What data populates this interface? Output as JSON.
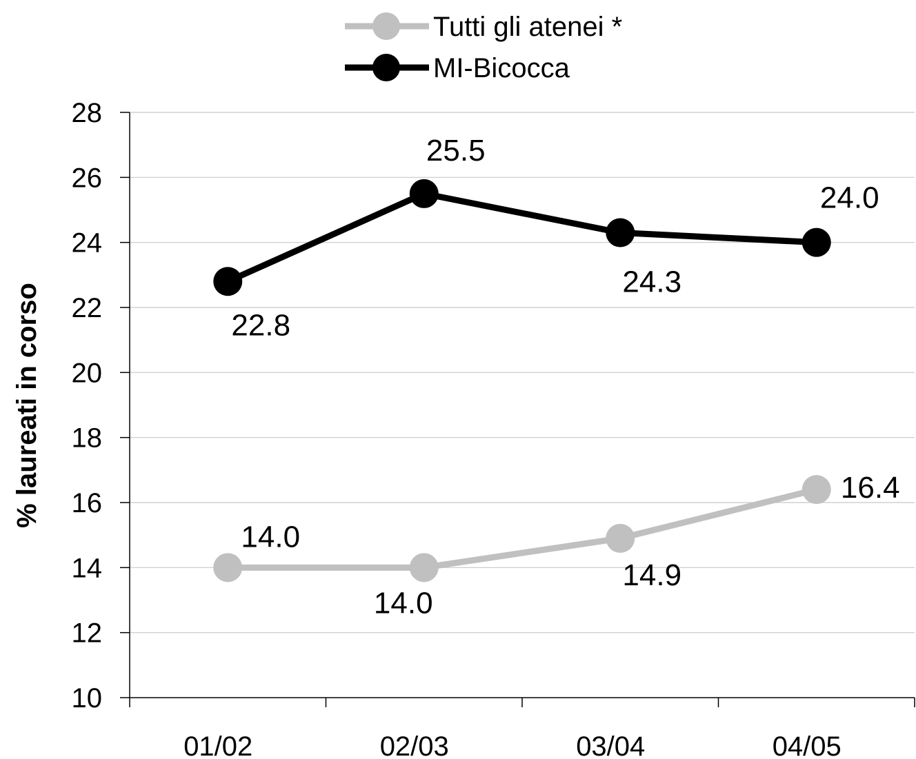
{
  "chart_data": {
    "type": "line",
    "title": "",
    "xlabel": "",
    "ylabel": "% laureati in corso",
    "categories": [
      "01/02",
      "02/03",
      "03/04",
      "04/05"
    ],
    "ylim": [
      10,
      28
    ],
    "yticks": [
      10,
      12,
      14,
      16,
      18,
      20,
      22,
      24,
      26,
      28
    ],
    "grid": "horizontal",
    "legend_position": "top",
    "series": [
      {
        "name": "Tutti gli atenei *",
        "color": "#c0c0c0",
        "values": [
          14.0,
          14.0,
          14.9,
          16.4
        ],
        "labels": [
          "14.0",
          "14.0",
          "14.9",
          "16.4"
        ]
      },
      {
        "name": "MI-Bicocca",
        "color": "#000000",
        "values": [
          22.8,
          25.5,
          24.3,
          24.0
        ],
        "labels": [
          "22.8",
          "25.5",
          "24.3",
          "24.0"
        ]
      }
    ]
  }
}
